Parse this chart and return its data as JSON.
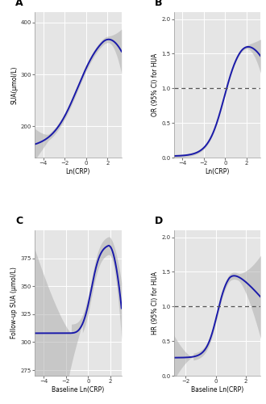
{
  "bg_color": "#e5e5e5",
  "line_color": "#1a1aaa",
  "ci_color": "#aaaaaa",
  "ci_alpha": 0.5,
  "dashed_color": "#555555",
  "panel_A": {
    "label": "A",
    "xlabel": "Ln(CRP)",
    "ylabel": "SUA(μmol/L)",
    "xlim": [
      -4.8,
      3.3
    ],
    "ylim": [
      140,
      420
    ],
    "yticks": [
      200,
      300,
      400
    ],
    "xticks": [
      -4,
      -2,
      0,
      2
    ]
  },
  "panel_B": {
    "label": "B",
    "xlabel": "Ln(CRP)",
    "ylabel": "OR (95% CI) for HUA",
    "xlim": [
      -4.8,
      3.3
    ],
    "ylim": [
      0.0,
      2.1
    ],
    "yticks": [
      0.0,
      0.5,
      1.0,
      1.5,
      2.0
    ],
    "xticks": [
      -4,
      -2,
      0,
      2
    ],
    "hline": 1.0
  },
  "panel_C": {
    "label": "C",
    "xlabel": "Baseline Ln(CRP)",
    "ylabel": "Follow-up SUA (μmol/L)",
    "xlim": [
      -4.8,
      3.0
    ],
    "ylim": [
      270,
      400
    ],
    "yticks": [
      275,
      300,
      325,
      350,
      375
    ],
    "xticks": [
      -4,
      -2,
      0,
      2
    ]
  },
  "panel_D": {
    "label": "D",
    "xlabel": "Baseline Ln(CRP)",
    "ylabel": "HR (95% CI) for HUA",
    "xlim": [
      -2.8,
      3.0
    ],
    "ylim": [
      0.0,
      2.1
    ],
    "yticks": [
      0.0,
      0.5,
      1.0,
      1.5,
      2.0
    ],
    "xticks": [
      -2,
      0,
      2
    ],
    "hline": 1.0
  }
}
